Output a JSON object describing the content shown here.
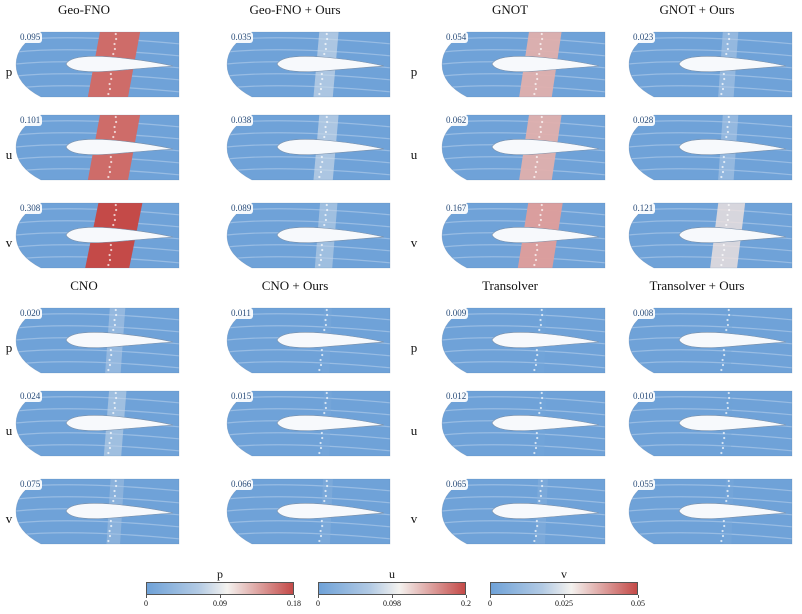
{
  "columns": [
    {
      "title": "Geo-FNO"
    },
    {
      "title": "Geo-FNO + Ours"
    },
    {
      "title": "GNOT"
    },
    {
      "title": "GNOT + Ours"
    },
    {
      "title": "CNO"
    },
    {
      "title": "CNO + Ours"
    },
    {
      "title": "Transolver"
    },
    {
      "title": "Transolver + Ours"
    }
  ],
  "row_labels": [
    "p",
    "u",
    "v"
  ],
  "panels": [
    {
      "model": "Geo-FNO",
      "var": "p",
      "error": "0.095",
      "level": 0.9
    },
    {
      "model": "Geo-FNO + Ours",
      "var": "p",
      "error": "0.035",
      "level": 0.35
    },
    {
      "model": "GNOT",
      "var": "p",
      "error": "0.054",
      "level": 0.7
    },
    {
      "model": "GNOT + Ours",
      "var": "p",
      "error": "0.023",
      "level": 0.25
    },
    {
      "model": "Geo-FNO",
      "var": "u",
      "error": "0.101",
      "level": 0.9
    },
    {
      "model": "Geo-FNO + Ours",
      "var": "u",
      "error": "0.038",
      "level": 0.35
    },
    {
      "model": "GNOT",
      "var": "u",
      "error": "0.062",
      "level": 0.7
    },
    {
      "model": "GNOT + Ours",
      "var": "u",
      "error": "0.028",
      "level": 0.25
    },
    {
      "model": "Geo-FNO",
      "var": "v",
      "error": "0.308",
      "level": 1.0
    },
    {
      "model": "Geo-FNO + Ours",
      "var": "v",
      "error": "0.089",
      "level": 0.3
    },
    {
      "model": "GNOT",
      "var": "v",
      "error": "0.167",
      "level": 0.75
    },
    {
      "model": "GNOT + Ours",
      "var": "v",
      "error": "0.121",
      "level": 0.55
    },
    {
      "model": "CNO",
      "var": "p",
      "error": "0.020",
      "level": 0.25
    },
    {
      "model": "CNO + Ours",
      "var": "p",
      "error": "0.011",
      "level": 0.05
    },
    {
      "model": "Transolver",
      "var": "p",
      "error": "0.009",
      "level": 0.03
    },
    {
      "model": "Transolver + Ours",
      "var": "p",
      "error": "0.008",
      "level": 0.0
    },
    {
      "model": "CNO",
      "var": "u",
      "error": "0.024",
      "level": 0.3
    },
    {
      "model": "CNO + Ours",
      "var": "u",
      "error": "0.015",
      "level": 0.05
    },
    {
      "model": "Transolver",
      "var": "u",
      "error": "0.012",
      "level": 0.03
    },
    {
      "model": "Transolver + Ours",
      "var": "u",
      "error": "0.010",
      "level": 0.0
    },
    {
      "model": "CNO",
      "var": "v",
      "error": "0.075",
      "level": 0.2
    },
    {
      "model": "CNO + Ours",
      "var": "v",
      "error": "0.066",
      "level": 0.1
    },
    {
      "model": "Transolver",
      "var": "v",
      "error": "0.065",
      "level": 0.1
    },
    {
      "model": "Transolver + Ours",
      "var": "v",
      "error": "0.055",
      "level": 0.05
    }
  ],
  "colorbars": [
    {
      "label": "p",
      "min": "0",
      "mid": "0.09",
      "max": "0.18"
    },
    {
      "label": "u",
      "min": "0",
      "mid": "0.098",
      "max": "0.2"
    },
    {
      "label": "v",
      "min": "0",
      "mid": "0.025",
      "max": "0.05"
    }
  ],
  "colors": {
    "low": "#6fa2d8",
    "mid": "#f4f2ef",
    "high": "#c44a48"
  }
}
